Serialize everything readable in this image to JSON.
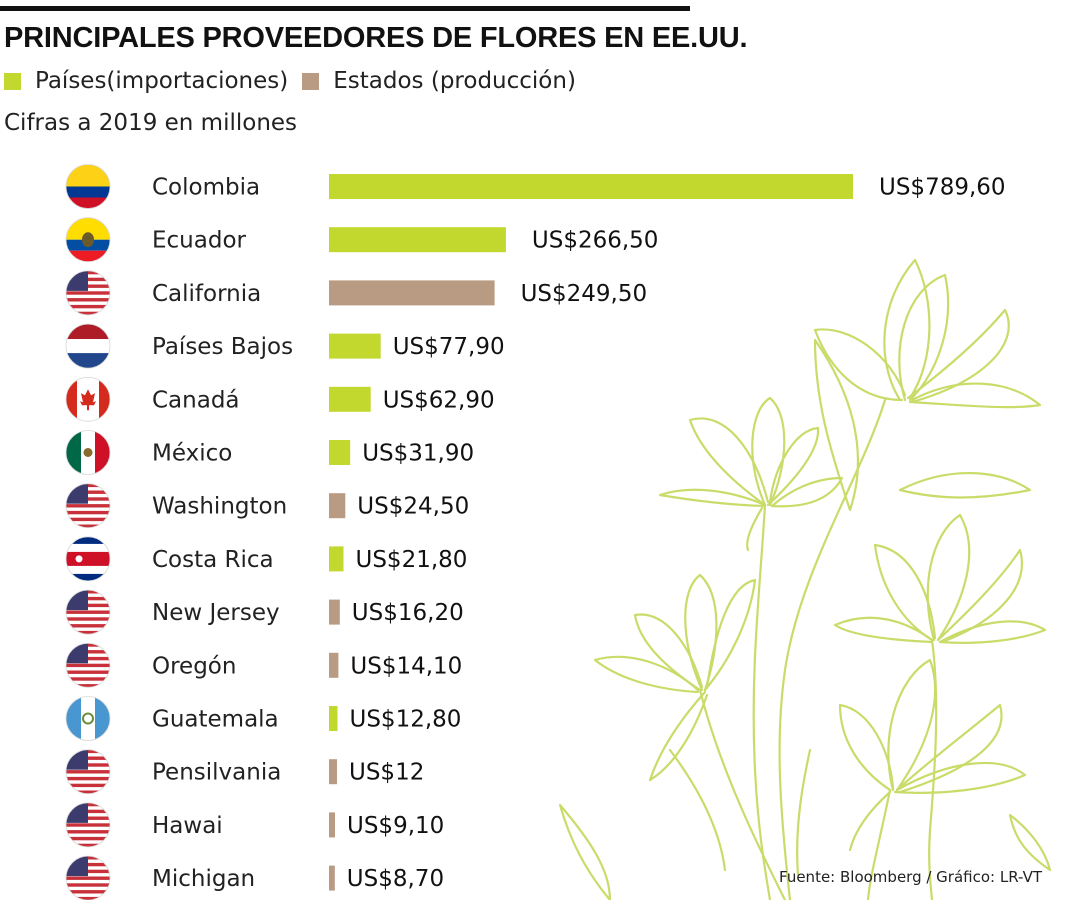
{
  "header": {
    "title": "PRINCIPALES PROVEEDORES DE FLORES EN EE.UU.",
    "subtitle": "Cifras a 2019 en millones"
  },
  "legend": [
    {
      "label": "Países(importaciones)",
      "color": "#c3d82e"
    },
    {
      "label": "Estados (producción)",
      "color": "#b99b83"
    }
  ],
  "source": "Fuente: Bloomberg / Gráfico: LR-VT",
  "colors": {
    "countries": "#c3d82e",
    "states": "#b99b83",
    "flowers": "#c9dc6a"
  },
  "chart_data": {
    "type": "bar",
    "orientation": "horizontal",
    "categories": [
      "Colombia",
      "Ecuador",
      "California",
      "Países Bajos",
      "Canadá",
      "México",
      "Washington",
      "Costa Rica",
      "New Jersey",
      "Oregón",
      "Guatemala",
      "Pensilvania",
      "Hawai",
      "Michigan"
    ],
    "values": [
      789.6,
      266.5,
      249.5,
      77.9,
      62.9,
      31.9,
      24.5,
      21.8,
      16.2,
      14.1,
      12.8,
      12,
      9.1,
      8.7
    ],
    "value_labels": [
      "US$789,60",
      "US$266,50",
      "US$249,50",
      "US$77,90",
      "US$62,90",
      "US$31,90",
      "US$24,50",
      "US$21,80",
      "US$16,20",
      "US$14,10",
      "US$12,80",
      "US$12",
      "US$9,10",
      "US$8,70"
    ],
    "group": [
      "Países",
      "Países",
      "Estados",
      "Países",
      "Países",
      "Países",
      "Estados",
      "Países",
      "Estados",
      "Estados",
      "Países",
      "Estados",
      "Estados",
      "Estados"
    ],
    "flags": [
      "colombia-flag",
      "ecuador-flag",
      "usa-flag",
      "netherlands-flag",
      "canada-flag",
      "mexico-flag",
      "usa-flag",
      "costa-rica-flag",
      "usa-flag",
      "usa-flag",
      "guatemala-flag",
      "usa-flag",
      "usa-flag",
      "usa-flag"
    ],
    "xlim": [
      0,
      789.6
    ],
    "grid": false,
    "legend_position": "top-left"
  }
}
